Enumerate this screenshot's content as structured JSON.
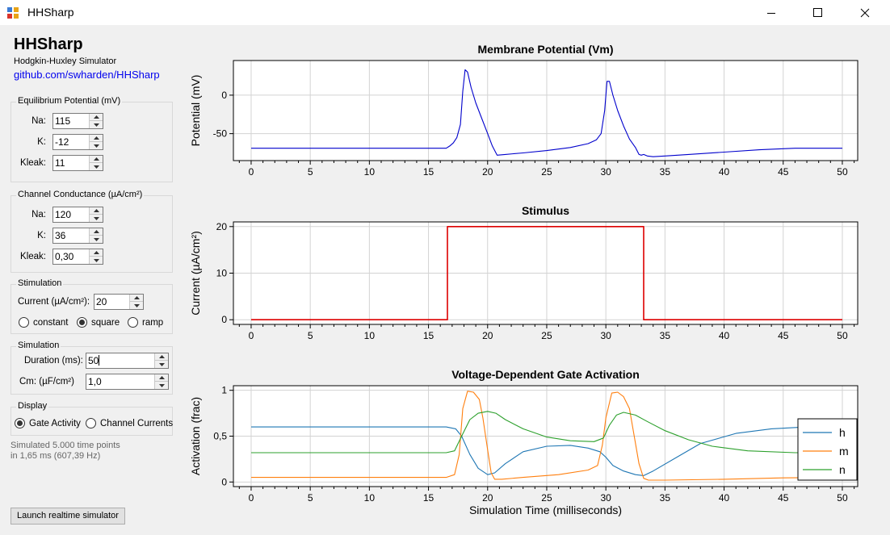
{
  "window": {
    "title": "HHSharp"
  },
  "header": {
    "app_name": "HHSharp",
    "subtitle": "Hodgkin-Huxley Simulator",
    "link": "github.com/swharden/HHSharp"
  },
  "equilibrium": {
    "label": "Equilibrium Potential (mV)",
    "na_label": "Na:",
    "na_value": "115",
    "k_label": "K:",
    "k_value": "-12",
    "kleak_label": "Kleak:",
    "kleak_value": "11"
  },
  "conductance": {
    "label": "Channel Conductance (µA/cm²)",
    "na_label": "Na:",
    "na_value": "120",
    "k_label": "K:",
    "k_value": "36",
    "kleak_label": "Kleak:",
    "kleak_value": "0,30"
  },
  "stimulation": {
    "label": "Stimulation",
    "current_label": "Current (µA/cm²):",
    "current_value": "20",
    "options": [
      "constant",
      "square",
      "ramp"
    ],
    "selected": "square"
  },
  "simulation": {
    "label": "Simulation",
    "duration_label": "Duration (ms):",
    "duration_value": "50",
    "cm_label": "Cm: (µF/cm²)",
    "cm_value": "1,0"
  },
  "display": {
    "label": "Display",
    "options": [
      "Gate Activity",
      "Channel Currents"
    ],
    "selected": "Gate Activity"
  },
  "status": {
    "line1": "Simulated 5.000 time points",
    "line2": "in 1,65 ms (607,39 Hz)"
  },
  "buttons": {
    "launch": "Launch realtime simulator"
  },
  "colors": {
    "vm": "#0000cc",
    "stimulus": "#dd0000",
    "h": "#1f77b4",
    "m": "#ff7f0e",
    "n": "#2ca02c",
    "grid": "#d3d3d3"
  },
  "chart_data": [
    {
      "type": "line",
      "title": "Membrane Potential (Vm)",
      "xlabel": "",
      "ylabel": "Potential (mV)",
      "xlim": [
        -1.5,
        51.3
      ],
      "ylim": [
        -85,
        45
      ],
      "xticks": [
        "0",
        "5",
        "10",
        "15",
        "20",
        "25",
        "30",
        "35",
        "40",
        "45",
        "50"
      ],
      "yticks": [
        {
          "v": 0,
          "label": "0"
        },
        {
          "v": -50,
          "label": "-50"
        }
      ],
      "series": [
        {
          "color": "#0000cc",
          "x": [
            0,
            16.5,
            16.8,
            17.1,
            17.4,
            17.7,
            17.9,
            18.1,
            18.3,
            18.6,
            19.0,
            19.5,
            20.0,
            20.4,
            20.8,
            21.5,
            23,
            25,
            27,
            28.5,
            29.2,
            29.6,
            29.9,
            30.1,
            30.3,
            30.6,
            31.0,
            31.5,
            32.0,
            32.5,
            32.8,
            33.0,
            33.2,
            33.5,
            34,
            35,
            37,
            40,
            43,
            46,
            50
          ],
          "y": [
            -69,
            -69,
            -66,
            -62,
            -55,
            -38,
            5,
            33,
            30,
            10,
            -10,
            -30,
            -50,
            -66,
            -78,
            -77,
            -75,
            -72,
            -68,
            -63,
            -58,
            -50,
            -20,
            18,
            18,
            0,
            -20,
            -40,
            -57,
            -68,
            -77,
            -78,
            -77,
            -79,
            -80,
            -79,
            -77,
            -74,
            -71,
            -69,
            -69
          ]
        }
      ]
    },
    {
      "type": "line",
      "title": "Stimulus",
      "xlabel": "",
      "ylabel": "Current (µA/cm²)",
      "xlim": [
        -1.5,
        51.3
      ],
      "ylim": [
        -1,
        21
      ],
      "xticks": [
        "0",
        "5",
        "10",
        "15",
        "20",
        "25",
        "30",
        "35",
        "40",
        "45",
        "50"
      ],
      "yticks": [
        {
          "v": 20,
          "label": "20"
        },
        {
          "v": 10,
          "label": "10"
        },
        {
          "v": 0,
          "label": "0"
        }
      ],
      "series": [
        {
          "color": "#dd0000",
          "x": [
            0,
            16.6,
            16.6,
            33.2,
            33.2,
            50
          ],
          "y": [
            0,
            0,
            20,
            20,
            0,
            0
          ]
        }
      ]
    },
    {
      "type": "line",
      "title": "Voltage-Dependent Gate Activation",
      "xlabel": "Simulation Time (milliseconds)",
      "ylabel": "Activation (frac)",
      "xlim": [
        -1.5,
        51.3
      ],
      "ylim": [
        -0.05,
        1.05
      ],
      "xticks": [
        "0",
        "5",
        "10",
        "15",
        "20",
        "25",
        "30",
        "35",
        "40",
        "45",
        "50"
      ],
      "yticks": [
        {
          "v": 1,
          "label": "1"
        },
        {
          "v": 0.5,
          "label": "0,5"
        },
        {
          "v": 0,
          "label": "0"
        }
      ],
      "legend": "right",
      "series": [
        {
          "name": "h",
          "color": "#1f77b4",
          "x": [
            0,
            16.5,
            17.3,
            17.8,
            18.5,
            19.2,
            20.0,
            20.6,
            21.5,
            23,
            25,
            27,
            28.5,
            29.5,
            30.0,
            30.6,
            31.5,
            32.5,
            33.2,
            34,
            36,
            38,
            41,
            44,
            47,
            50
          ],
          "y": [
            0.6,
            0.6,
            0.58,
            0.5,
            0.3,
            0.15,
            0.08,
            0.1,
            0.2,
            0.33,
            0.39,
            0.4,
            0.37,
            0.33,
            0.27,
            0.18,
            0.12,
            0.08,
            0.07,
            0.12,
            0.27,
            0.42,
            0.53,
            0.58,
            0.6,
            0.6
          ]
        },
        {
          "name": "m",
          "color": "#ff7f0e",
          "x": [
            0,
            16.5,
            17.2,
            17.6,
            17.9,
            18.3,
            18.8,
            19.3,
            19.6,
            20.0,
            20.3,
            20.6,
            21.2,
            23,
            26,
            28.5,
            29.3,
            29.7,
            30.0,
            30.5,
            31.0,
            31.5,
            32.0,
            32.4,
            32.8,
            33.2,
            33.6,
            35,
            40,
            45,
            50
          ],
          "y": [
            0.05,
            0.05,
            0.08,
            0.3,
            0.8,
            0.99,
            0.98,
            0.9,
            0.7,
            0.35,
            0.1,
            0.03,
            0.03,
            0.05,
            0.08,
            0.13,
            0.18,
            0.4,
            0.7,
            0.97,
            0.98,
            0.93,
            0.8,
            0.5,
            0.2,
            0.04,
            0.02,
            0.02,
            0.03,
            0.045,
            0.05
          ]
        },
        {
          "name": "n",
          "color": "#2ca02c",
          "x": [
            0,
            16.5,
            17.2,
            17.8,
            18.5,
            19.2,
            20.0,
            20.7,
            21.5,
            23,
            25,
            27,
            29,
            29.8,
            30.3,
            30.9,
            31.5,
            32.5,
            33.5,
            35,
            37,
            39,
            42,
            46,
            50
          ],
          "y": [
            0.32,
            0.32,
            0.34,
            0.5,
            0.68,
            0.75,
            0.77,
            0.75,
            0.68,
            0.58,
            0.49,
            0.45,
            0.44,
            0.48,
            0.62,
            0.73,
            0.76,
            0.73,
            0.66,
            0.56,
            0.46,
            0.39,
            0.34,
            0.32,
            0.32
          ]
        }
      ]
    }
  ]
}
